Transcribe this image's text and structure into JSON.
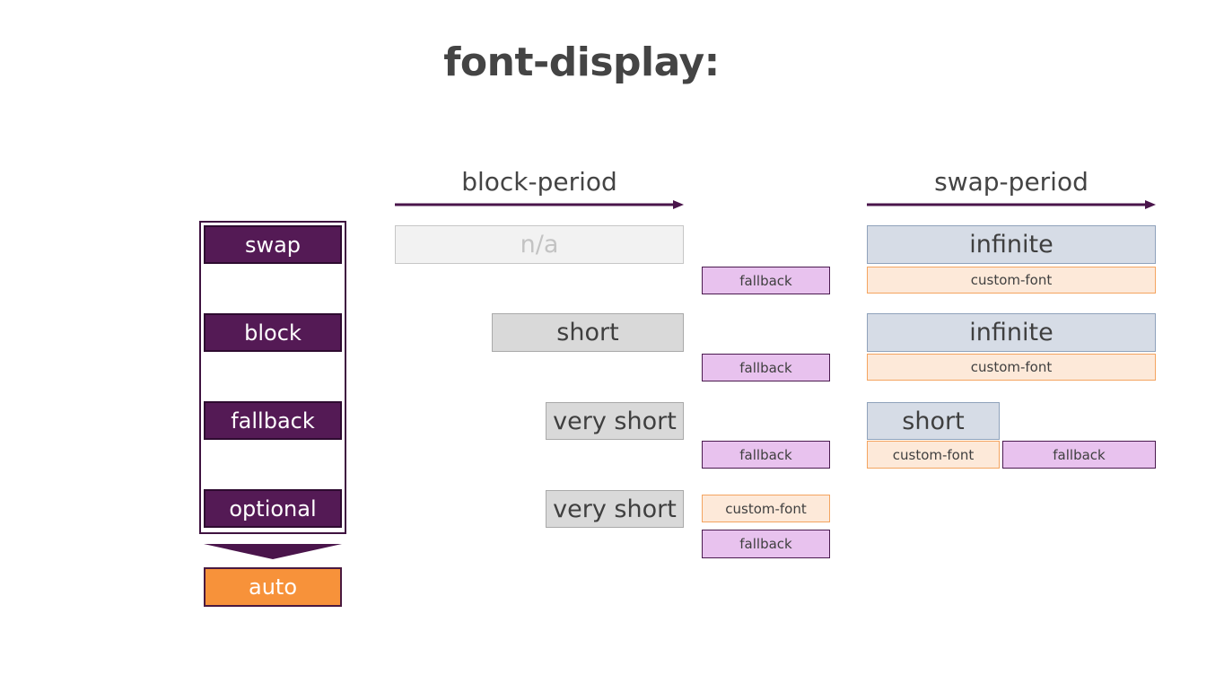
{
  "title": "font-display:",
  "periods": {
    "block": "block-period",
    "swap": "swap-period"
  },
  "options": [
    "swap",
    "block",
    "fallback",
    "optional"
  ],
  "auto": "auto",
  "rows": [
    {
      "option": "swap",
      "block_period": "n/a",
      "block_render": "fallback",
      "swap_period": "infinite",
      "swap_render": [
        "custom-font"
      ]
    },
    {
      "option": "block",
      "block_period": "short",
      "block_render": "fallback",
      "swap_period": "infinite",
      "swap_render": [
        "custom-font"
      ]
    },
    {
      "option": "fallback",
      "block_period": "very short",
      "block_render": "fallback",
      "swap_period": "short",
      "swap_render": [
        "custom-font",
        "fallback"
      ]
    },
    {
      "option": "optional",
      "block_period": "very short",
      "block_render": [
        "custom-font",
        "fallback"
      ],
      "swap_period": "",
      "swap_render": []
    }
  ],
  "colors": {
    "option_purple": "#541a55",
    "auto_orange": "#f7923a",
    "fallback_pink": "#e8c2ee",
    "custom_peach": "#fde9d9",
    "swap_blue": "#d6dce6",
    "block_gray": "#d9d9d9"
  }
}
